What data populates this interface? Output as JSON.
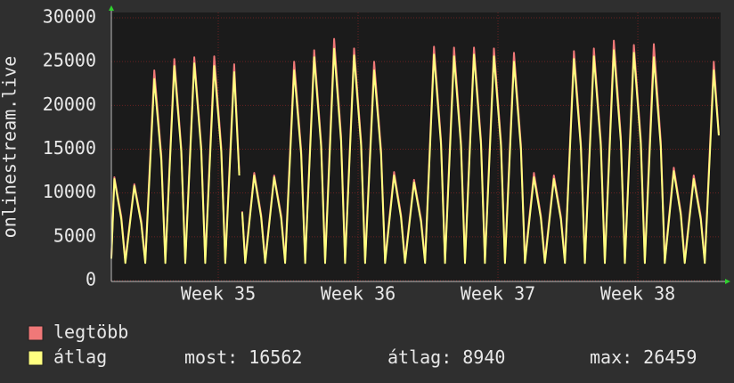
{
  "chart_data": {
    "type": "line",
    "ylabel": "onlinestream.live",
    "x": [
      0,
      0.15,
      0.5,
      0.7,
      1.15,
      1.5,
      1.7,
      2.15,
      2.5,
      2.7,
      3.15,
      3.5,
      3.7,
      4.15,
      4.5,
      4.7,
      5.15,
      5.5,
      5.7,
      6.15,
      6.4,
      6.5,
      6.55,
      6.7,
      7.15,
      7.5,
      7.7,
      8.15,
      8.5,
      8.7,
      9.15,
      9.5,
      9.7,
      10.15,
      10.5,
      10.7,
      11.15,
      11.5,
      11.7,
      12.15,
      12.5,
      12.7,
      13.15,
      13.5,
      13.7,
      14.15,
      14.5,
      14.7,
      15.15,
      15.5,
      15.7,
      16.15,
      16.5,
      16.7,
      17.15,
      17.5,
      17.7,
      18.15,
      18.5,
      18.7,
      19.15,
      19.5,
      19.7,
      20.15,
      20.5,
      20.7,
      21.15,
      21.5,
      21.7,
      22.15,
      22.5,
      22.7,
      23.15,
      23.5,
      23.7,
      24.15,
      24.5,
      24.7,
      25.15,
      25.5,
      25.7,
      26.15,
      26.5,
      26.7,
      27.15,
      27.5,
      27.7,
      28.15,
      28.5,
      28.7,
      29.15,
      29.5,
      29.7,
      30.15,
      30.4
    ],
    "series": [
      {
        "name": "legtöbb",
        "color": "#f07878",
        "values": [
          2700,
          11800,
          7300,
          2300,
          11000,
          6800,
          2300,
          24000,
          14300,
          2300,
          25300,
          15100,
          2300,
          25500,
          15300,
          2300,
          25600,
          15200,
          2300,
          24700,
          12300,
          null,
          7900,
          2300,
          12300,
          7500,
          2300,
          12000,
          7400,
          2300,
          25000,
          14900,
          2300,
          26300,
          15800,
          2300,
          27600,
          16500,
          2300,
          26500,
          15900,
          2300,
          25000,
          14900,
          2300,
          12400,
          7500,
          2300,
          11500,
          7000,
          2300,
          26700,
          16000,
          2300,
          26600,
          15900,
          2300,
          26600,
          16000,
          2300,
          26500,
          15900,
          2300,
          26000,
          15500,
          2300,
          12300,
          7400,
          2300,
          12000,
          7300,
          2300,
          26200,
          15700,
          2300,
          26500,
          15900,
          2300,
          27400,
          16400,
          2300,
          26900,
          16100,
          2300,
          27000,
          15900,
          2300,
          12900,
          7800,
          2300,
          12000,
          7300,
          2300,
          25000,
          16800
        ]
      },
      {
        "name": "átlag",
        "color": "#ffff80",
        "values": [
          2500,
          11600,
          7000,
          2000,
          10800,
          6500,
          2000,
          23000,
          13800,
          2000,
          24500,
          14700,
          2000,
          24800,
          14900,
          2000,
          24500,
          14700,
          2000,
          23800,
          12000,
          null,
          7800,
          2000,
          12000,
          7200,
          2000,
          11800,
          7100,
          2000,
          24000,
          14400,
          2000,
          25500,
          15300,
          2000,
          26459,
          15900,
          2000,
          25700,
          15400,
          2000,
          24000,
          14400,
          2000,
          12000,
          7200,
          2000,
          11200,
          6700,
          2000,
          25800,
          15500,
          2000,
          25600,
          15400,
          2000,
          25800,
          15500,
          2000,
          25600,
          15400,
          2000,
          25000,
          15000,
          2000,
          11800,
          7100,
          2000,
          11600,
          7000,
          2000,
          25300,
          15200,
          2000,
          25600,
          15400,
          2000,
          26300,
          15800,
          2000,
          26000,
          15600,
          2000,
          25500,
          15300,
          2000,
          12500,
          7500,
          2000,
          11600,
          7000,
          2000,
          24000,
          16562
        ]
      }
    ],
    "xlim": [
      0,
      30.45
    ],
    "xticks": [
      {
        "value": 5.35,
        "label": "Week 35"
      },
      {
        "value": 12.35,
        "label": "Week 36"
      },
      {
        "value": 19.35,
        "label": "Week 37"
      },
      {
        "value": 26.35,
        "label": "Week 38"
      }
    ],
    "ylim": [
      0,
      30000
    ],
    "yticks": [
      0,
      5000,
      10000,
      15000,
      20000,
      25000,
      30000
    ],
    "grid": true,
    "stats": [
      {
        "label": "most:",
        "value": 16562
      },
      {
        "label": "átlag:",
        "value": 8940
      },
      {
        "label": "max:",
        "value": 26459
      }
    ]
  }
}
